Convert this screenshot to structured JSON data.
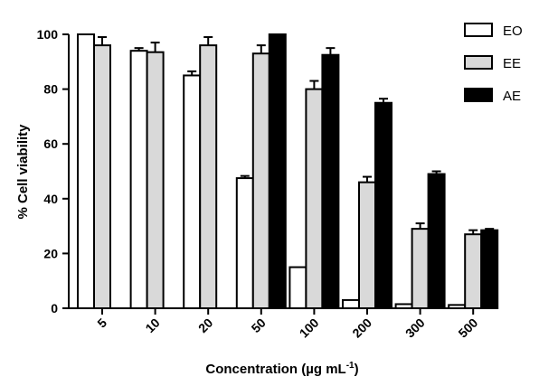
{
  "chart_data": {
    "type": "bar",
    "title": "",
    "xlabel": "Concentration (µg mL",
    "xlabel_sup": "-1",
    "xlabel_end": ")",
    "ylabel": "% Cell viability",
    "ylim": [
      0,
      100
    ],
    "yticks": [
      0,
      20,
      40,
      60,
      80,
      100
    ],
    "categories": [
      "5",
      "10",
      "20",
      "50",
      "100",
      "200",
      "300",
      "500"
    ],
    "legend_position": "top-right",
    "series": [
      {
        "name": "EO",
        "fill": "#ffffff",
        "values": [
          100,
          94,
          85,
          47.5,
          15,
          3,
          1.5,
          1.2
        ],
        "errors": [
          0,
          1,
          1.5,
          0.8,
          0,
          0,
          0,
          0
        ]
      },
      {
        "name": "EE",
        "fill": "#d9d9d9",
        "values": [
          96,
          93.5,
          96,
          93,
          80,
          46,
          29,
          27
        ],
        "errors": [
          3,
          3.5,
          3,
          3,
          3,
          2,
          2,
          1.5
        ]
      },
      {
        "name": "AE",
        "fill": "#000000",
        "values": [
          null,
          null,
          null,
          100,
          92.5,
          75,
          49,
          28.5
        ],
        "errors": [
          0,
          0,
          0,
          0,
          2.5,
          1.5,
          1,
          0.5
        ]
      }
    ]
  }
}
